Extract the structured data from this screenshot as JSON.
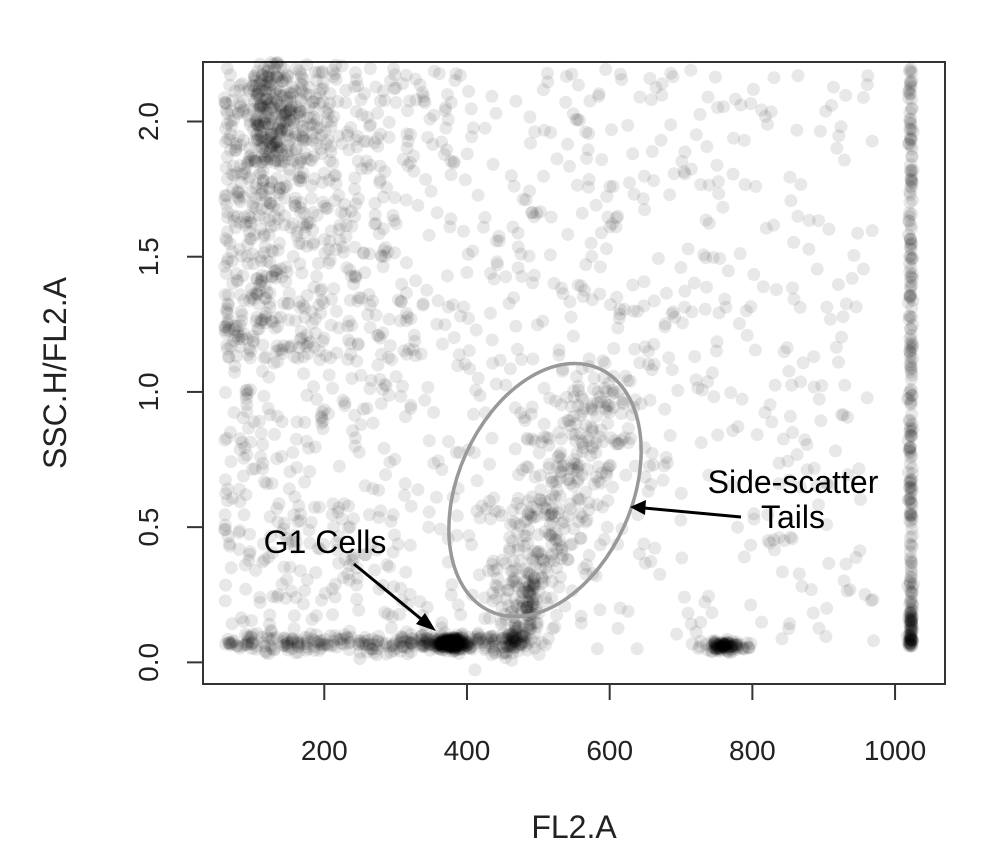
{
  "chart_data": {
    "type": "scatter",
    "title": "",
    "xlabel": "FL2.A",
    "ylabel": "SSC.H/FL2.A",
    "xlim": [
      30,
      1070
    ],
    "ylim": [
      -0.08,
      2.22
    ],
    "x_ticks": [
      200,
      400,
      600,
      800,
      1000
    ],
    "x_tick_labels": [
      "200",
      "400",
      "600",
      "800",
      "1000"
    ],
    "y_ticks": [
      0.0,
      0.5,
      1.0,
      1.5,
      2.0
    ],
    "y_tick_labels": [
      "0.0",
      "0.5",
      "1.0",
      "1.5",
      "2.0"
    ],
    "grid": false,
    "legend": "none",
    "point_color": "#000000",
    "point_opacity": 0.09,
    "clusters": [
      {
        "name": "G1 peak",
        "center": [
          378,
          0.07
        ],
        "spread": [
          12,
          0.012
        ]
      },
      {
        "name": "G2 peak",
        "center": [
          760,
          0.06
        ],
        "spread": [
          18,
          0.01
        ]
      },
      {
        "name": "saturation column",
        "center": [
          1022,
          1.1
        ],
        "spread": [
          2,
          1.1
        ]
      },
      {
        "name": "low-FL2 band",
        "center": [
          120,
          0.08
        ],
        "spread": [
          40,
          0.02
        ]
      }
    ],
    "annotations": [
      {
        "text": "G1 Cells",
        "target": [
          378,
          0.07
        ]
      },
      {
        "text_lines": [
          "Side-scatter",
          "Tails"
        ],
        "target_region": {
          "center": [
            545,
            0.56
          ],
          "rx": 95,
          "ry": 0.58
        }
      }
    ]
  }
}
